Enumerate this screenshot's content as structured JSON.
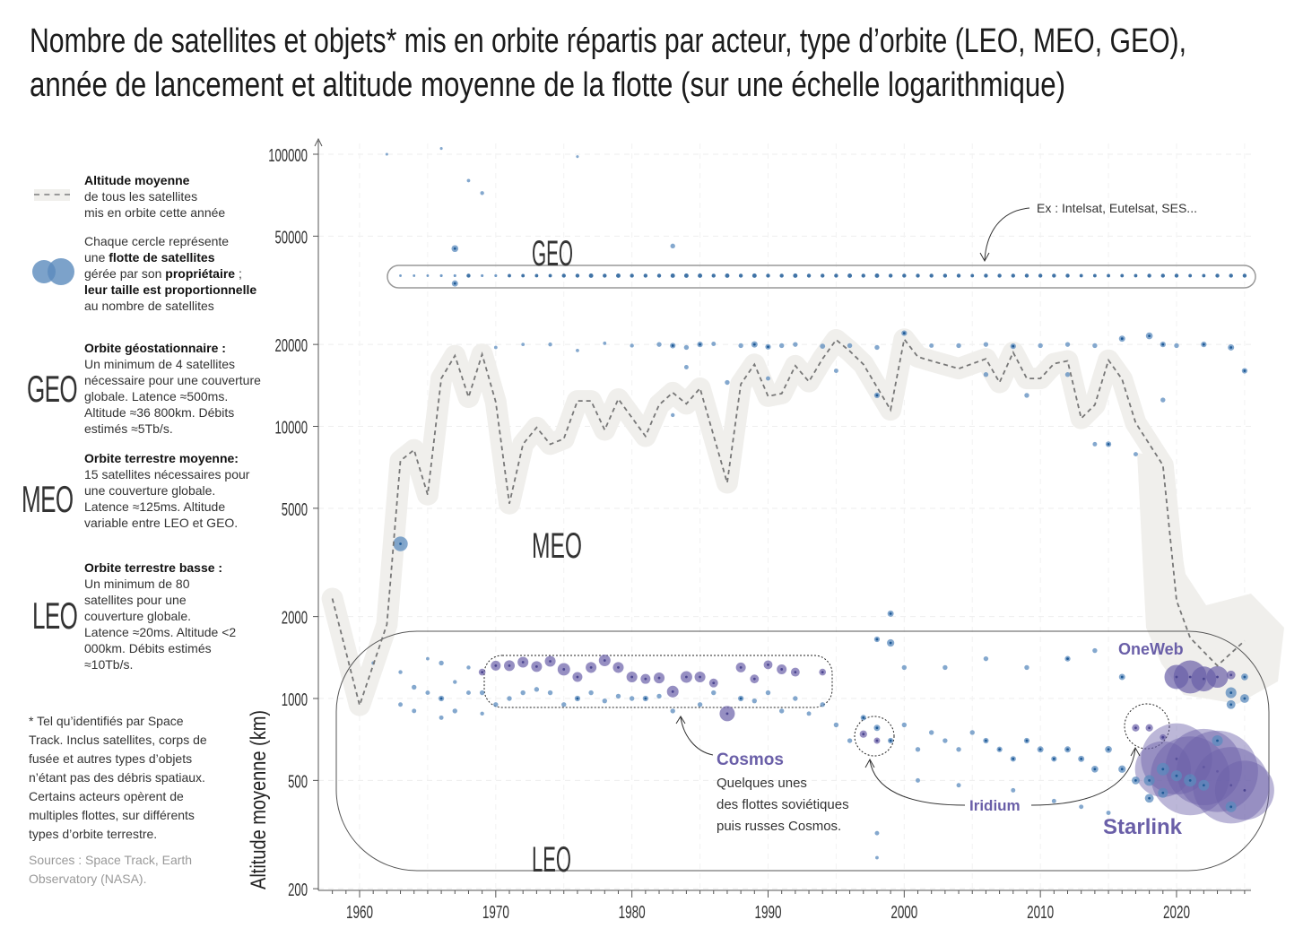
{
  "title": {
    "line1": "Nombre de satellites et objets* mis en orbite répartis par acteur, type d’orbite (LEO, MEO, GEO),",
    "line2": "année de lancement et altitude moyenne de la flotte (sur une échelle logarithmique)"
  },
  "legend": {
    "avg_title": "Altitude moyenne",
    "avg_l1": "de tous les satellites",
    "avg_l2": "mis en orbite cette année",
    "circle_l1": "Chaque cercle représente",
    "circle_l2a": "une ",
    "circle_l2b": "flotte de satellites",
    "circle_l3a": "gérée par son ",
    "circle_l3b": "propriétaire",
    "circle_l3c": " ;",
    "circle_l4": "leur taille est proportionnelle",
    "circle_l5": "au nombre de satellites"
  },
  "orbits": [
    {
      "code": "GEO",
      "title": "Orbite géostationnaire :",
      "text": "Un minimum de 4 satellites nécessaire pour une couverture globale. Latence ≈500ms. Altitude ≈36 800km. Débits estimés ≈5Tb/s."
    },
    {
      "code": "MEO",
      "title": "Orbite terrestre moyenne:",
      "text": "15 satellites nécessaires pour une couverture globale. Latence ≈125ms. Altitude variable entre LEO et GEO."
    },
    {
      "code": "LEO",
      "title": "Orbite terrestre basse :",
      "text": "Un minimum de 80 satellites pour une couverture globale. Latence ≈20ms. Altitude <2 000km. Débits estimés ≈10Tb/s."
    }
  ],
  "footnote": "* Tel qu’identifiés par Space Track. Inclus satellites, corps de fusée et autres types d’objets n’étant pas des débris spatiaux. Certains acteurs opèrent de multiples flottes, sur différents types d’orbite terrestre.",
  "sources": "Sources : Space Track, Earth Observatory (NASA).",
  "colors": {
    "fleet": "#5b8bbd",
    "fleet_dark": "#1f5a96",
    "highlight": "#6a5fa8",
    "avg_line": "#777777",
    "avg_band": "#f0efec"
  },
  "chart_data": {
    "type": "scatter",
    "ylabel": "Altitude moyenne (km)",
    "yscale": "log",
    "ylim": [
      200,
      100000
    ],
    "xlim": [
      1957,
      2025
    ],
    "yticks": [
      "200",
      "500",
      "1000",
      "2000",
      "5000",
      "10000",
      "20000",
      "50000",
      "100000"
    ],
    "xticks": [
      "1960",
      "1970",
      "1980",
      "1990",
      "2000",
      "2010",
      "2020"
    ],
    "grid": true,
    "zone_labels": {
      "geo": "GEO",
      "meo": "MEO",
      "leo": "LEO"
    },
    "annotations": {
      "geo_example": "Ex : Intelsat, Eutelsat, SES...",
      "cosmos": "Cosmos",
      "cosmos_l1": "Quelques unes",
      "cosmos_l2": "des flottes soviétiques",
      "cosmos_l3": "puis russes Cosmos.",
      "iridium": "Iridium",
      "oneweb": "OneWeb",
      "starlink": "Starlink"
    },
    "average_altitude": {
      "years": [
        1958,
        1960,
        1962,
        1963,
        1964,
        1965,
        1966,
        1967,
        1968,
        1969,
        1970,
        1971,
        1972,
        1973,
        1974,
        1975,
        1976,
        1977,
        1978,
        1979,
        1981,
        1982,
        1983,
        1984,
        1985,
        1987,
        1988,
        1989,
        1990,
        1991,
        1992,
        1993,
        1994,
        1995,
        1996,
        1997,
        1999,
        2000,
        2001,
        2002,
        2004,
        2006,
        2007,
        2008,
        2009,
        2010,
        2011,
        2012,
        2013,
        2014,
        2015,
        2016,
        2017,
        2019,
        2020,
        2021,
        2023,
        2025
      ],
      "values": [
        2330,
        944,
        1870,
        7470,
        8200,
        5610,
        15000,
        18200,
        12800,
        18400,
        12300,
        5200,
        8600,
        9900,
        8600,
        9000,
        12400,
        12400,
        9700,
        12600,
        9200,
        12000,
        13300,
        12100,
        13800,
        6200,
        14300,
        16900,
        12900,
        13200,
        16700,
        14600,
        17700,
        20800,
        18900,
        16900,
        11500,
        20900,
        18000,
        17400,
        16300,
        17700,
        14500,
        18700,
        15000,
        15000,
        17000,
        17400,
        10700,
        12000,
        17500,
        14900,
        10300,
        7200,
        2290,
        1670,
        1320,
        1630
      ]
    },
    "geo_row": {
      "altitude": 35786,
      "years_from": 1963,
      "sats": [
        1,
        1,
        1,
        2,
        2,
        4,
        2,
        2,
        3,
        3,
        3,
        3,
        4,
        4,
        5,
        4,
        5,
        4,
        4,
        4,
        5,
        5,
        5,
        4,
        5,
        4,
        5,
        4,
        4,
        5,
        4,
        4,
        4,
        5,
        4,
        5,
        4,
        4,
        4,
        4,
        4,
        4,
        3,
        4,
        4,
        4,
        4,
        4,
        4,
        4,
        3,
        3,
        3,
        3,
        3,
        4,
        4,
        4,
        3,
        3,
        4,
        4,
        4
      ]
    },
    "fleets": [
      [
        1963,
        3700,
        55,
        "b"
      ],
      [
        1967,
        45000,
        12,
        "b"
      ],
      [
        1967,
        33500,
        10,
        "b"
      ],
      [
        1983,
        46000,
        6,
        "b"
      ],
      [
        1968,
        80000,
        3,
        "b"
      ],
      [
        1969,
        72000,
        4,
        "b"
      ],
      [
        1962,
        100000,
        2,
        "b"
      ],
      [
        1966,
        105000,
        2,
        "b"
      ],
      [
        1976,
        98000,
        2,
        "b"
      ],
      [
        1999,
        2050,
        10,
        "b"
      ],
      [
        1999,
        1600,
        14,
        "b"
      ],
      [
        1998,
        1650,
        8,
        "b"
      ],
      [
        1970,
        19500,
        3,
        "b"
      ],
      [
        1972,
        20000,
        3,
        "b"
      ],
      [
        1974,
        20000,
        4,
        "b"
      ],
      [
        1976,
        19000,
        3,
        "b"
      ],
      [
        1978,
        20200,
        3,
        "b"
      ],
      [
        1980,
        19800,
        4,
        "b"
      ],
      [
        1982,
        20000,
        6,
        "b"
      ],
      [
        1983,
        19800,
        8,
        "b"
      ],
      [
        1984,
        19500,
        6,
        "b"
      ],
      [
        1985,
        20000,
        8,
        "b"
      ],
      [
        1986,
        20100,
        5,
        "b"
      ],
      [
        1988,
        19800,
        6,
        "b"
      ],
      [
        1989,
        20000,
        10,
        "b"
      ],
      [
        1990,
        19600,
        8,
        "b"
      ],
      [
        1991,
        19800,
        6,
        "b"
      ],
      [
        1992,
        20000,
        6,
        "b"
      ],
      [
        1994,
        19700,
        7,
        "b"
      ],
      [
        1996,
        19800,
        6,
        "b"
      ],
      [
        1998,
        19500,
        6,
        "b"
      ],
      [
        2000,
        22000,
        8,
        "b"
      ],
      [
        2002,
        19800,
        5,
        "b"
      ],
      [
        2004,
        19800,
        6,
        "b"
      ],
      [
        2006,
        20000,
        6,
        "b"
      ],
      [
        2008,
        19700,
        8,
        "b"
      ],
      [
        2010,
        19800,
        6,
        "b"
      ],
      [
        2012,
        20000,
        6,
        "b"
      ],
      [
        2014,
        19800,
        6,
        "b"
      ],
      [
        2016,
        21000,
        10,
        "b"
      ],
      [
        2018,
        21500,
        12,
        "b"
      ],
      [
        2019,
        20000,
        8,
        "b"
      ],
      [
        2020,
        19800,
        6,
        "b"
      ],
      [
        2022,
        20000,
        8,
        "b"
      ],
      [
        2024,
        19500,
        10,
        "b"
      ],
      [
        2025,
        16000,
        8,
        "b"
      ],
      [
        1984,
        16500,
        5,
        "b"
      ],
      [
        1987,
        14500,
        6,
        "b"
      ],
      [
        1983,
        11000,
        4,
        "b"
      ],
      [
        1990,
        15000,
        5,
        "b"
      ],
      [
        1995,
        16000,
        5,
        "b"
      ],
      [
        1998,
        13000,
        8,
        "b"
      ],
      [
        2006,
        15500,
        6,
        "b"
      ],
      [
        2009,
        13000,
        6,
        "b"
      ],
      [
        2012,
        15500,
        6,
        "b"
      ],
      [
        2014,
        8600,
        5,
        "b"
      ],
      [
        2015,
        8600,
        8,
        "b"
      ],
      [
        2017,
        7900,
        5,
        "b"
      ],
      [
        2019,
        12500,
        6,
        "b"
      ],
      [
        1961,
        1350,
        3,
        "b"
      ],
      [
        1963,
        1250,
        4,
        "b"
      ],
      [
        1963,
        950,
        5,
        "b"
      ],
      [
        1964,
        1100,
        6,
        "b"
      ],
      [
        1964,
        900,
        5,
        "b"
      ],
      [
        1965,
        1400,
        3,
        "b"
      ],
      [
        1965,
        1050,
        5,
        "b"
      ],
      [
        1966,
        1350,
        6,
        "b"
      ],
      [
        1966,
        1000,
        8,
        "b"
      ],
      [
        1966,
        850,
        5,
        "b"
      ],
      [
        1967,
        1150,
        4,
        "b"
      ],
      [
        1967,
        900,
        6,
        "b"
      ],
      [
        1968,
        1300,
        4,
        "b"
      ],
      [
        1968,
        1050,
        5,
        "b"
      ],
      [
        1969,
        1050,
        6,
        "b"
      ],
      [
        1969,
        880,
        4,
        "b"
      ],
      [
        1970,
        950,
        6,
        "b"
      ],
      [
        1971,
        1000,
        6,
        "b"
      ],
      [
        1972,
        1050,
        6,
        "b"
      ],
      [
        1973,
        1080,
        6,
        "b"
      ],
      [
        1974,
        1050,
        6,
        "b"
      ],
      [
        1975,
        950,
        6,
        "b"
      ],
      [
        1976,
        1000,
        8,
        "b"
      ],
      [
        1977,
        1050,
        6,
        "b"
      ],
      [
        1978,
        980,
        6,
        "b"
      ],
      [
        1979,
        1020,
        6,
        "b"
      ],
      [
        1980,
        1000,
        6,
        "b"
      ],
      [
        1981,
        1000,
        8,
        "b"
      ],
      [
        1982,
        1020,
        6,
        "b"
      ],
      [
        1983,
        900,
        6,
        "b"
      ],
      [
        1985,
        950,
        6,
        "b"
      ],
      [
        1986,
        1050,
        6,
        "b"
      ],
      [
        1988,
        1000,
        8,
        "b"
      ],
      [
        1989,
        980,
        6,
        "b"
      ],
      [
        1990,
        1050,
        6,
        "b"
      ],
      [
        1991,
        900,
        6,
        "b"
      ],
      [
        1992,
        1000,
        6,
        "b"
      ],
      [
        1993,
        880,
        5,
        "b"
      ],
      [
        1994,
        950,
        6,
        "b"
      ],
      [
        1995,
        800,
        6,
        "b"
      ],
      [
        1996,
        700,
        6,
        "b"
      ],
      [
        1997,
        850,
        8,
        "b"
      ],
      [
        1998,
        780,
        10,
        "b"
      ],
      [
        1999,
        700,
        8,
        "b"
      ],
      [
        2000,
        800,
        6,
        "b"
      ],
      [
        2001,
        650,
        6,
        "b"
      ],
      [
        2002,
        750,
        6,
        "b"
      ],
      [
        2003,
        700,
        6,
        "b"
      ],
      [
        2004,
        650,
        6,
        "b"
      ],
      [
        2005,
        750,
        6,
        "b"
      ],
      [
        2006,
        700,
        8,
        "b"
      ],
      [
        2007,
        650,
        8,
        "b"
      ],
      [
        2008,
        600,
        8,
        "b"
      ],
      [
        2009,
        700,
        8,
        "b"
      ],
      [
        2010,
        650,
        10,
        "b"
      ],
      [
        2011,
        600,
        8,
        "b"
      ],
      [
        2012,
        650,
        10,
        "b"
      ],
      [
        2013,
        600,
        10,
        "b"
      ],
      [
        2014,
        550,
        12,
        "b"
      ],
      [
        2015,
        650,
        12,
        "b"
      ],
      [
        2016,
        550,
        14,
        "b"
      ],
      [
        2016,
        1200,
        10,
        "b"
      ],
      [
        2017,
        500,
        16,
        "b"
      ],
      [
        2018,
        500,
        30,
        "b"
      ],
      [
        2018,
        430,
        20,
        "b"
      ],
      [
        2019,
        550,
        40,
        "b"
      ],
      [
        2019,
        450,
        25,
        "b"
      ],
      [
        2020,
        520,
        30,
        "b"
      ],
      [
        2021,
        500,
        40,
        "b"
      ],
      [
        2022,
        480,
        30,
        "b"
      ],
      [
        2023,
        700,
        30,
        "b"
      ],
      [
        2024,
        1050,
        30,
        "b"
      ],
      [
        2024,
        950,
        20,
        "b"
      ],
      [
        2025,
        1000,
        20,
        "b"
      ],
      [
        2025,
        1200,
        12,
        "b"
      ],
      [
        2024,
        400,
        30,
        "b"
      ],
      [
        2000,
        1300,
        6,
        "b"
      ],
      [
        2003,
        1300,
        6,
        "b"
      ],
      [
        2006,
        1400,
        6,
        "b"
      ],
      [
        2009,
        1300,
        6,
        "b"
      ],
      [
        2012,
        1400,
        8,
        "b"
      ],
      [
        2014,
        1500,
        6,
        "b"
      ],
      [
        2001,
        500,
        5,
        "b"
      ],
      [
        2004,
        480,
        5,
        "b"
      ],
      [
        2008,
        460,
        5,
        "b"
      ],
      [
        2011,
        420,
        5,
        "b"
      ],
      [
        2013,
        400,
        5,
        "b"
      ],
      [
        2015,
        380,
        5,
        "b"
      ],
      [
        1998,
        320,
        5,
        "b"
      ],
      [
        1998,
        260,
        3,
        "b"
      ],
      [
        1969,
        1250,
        12,
        "p"
      ],
      [
        1970,
        1320,
        25,
        "p"
      ],
      [
        1971,
        1320,
        30,
        "p"
      ],
      [
        1972,
        1360,
        30,
        "p"
      ],
      [
        1973,
        1310,
        30,
        "p"
      ],
      [
        1974,
        1370,
        30,
        "p"
      ],
      [
        1975,
        1280,
        40,
        "p"
      ],
      [
        1976,
        1200,
        25,
        "p"
      ],
      [
        1977,
        1300,
        30,
        "p"
      ],
      [
        1978,
        1380,
        35,
        "p"
      ],
      [
        1979,
        1300,
        30,
        "p"
      ],
      [
        1980,
        1200,
        30,
        "p"
      ],
      [
        1981,
        1180,
        25,
        "p"
      ],
      [
        1982,
        1190,
        30,
        "p"
      ],
      [
        1983,
        1060,
        35,
        "p"
      ],
      [
        1984,
        1200,
        35,
        "p"
      ],
      [
        1985,
        1200,
        30,
        "p"
      ],
      [
        1986,
        1140,
        20,
        "p"
      ],
      [
        1987,
        880,
        60,
        "p"
      ],
      [
        1988,
        1300,
        25,
        "p"
      ],
      [
        1989,
        1180,
        20,
        "p"
      ],
      [
        1990,
        1330,
        20,
        "p"
      ],
      [
        1991,
        1280,
        25,
        "p"
      ],
      [
        1992,
        1250,
        20,
        "p"
      ],
      [
        1994,
        1250,
        12,
        "p"
      ],
      [
        1997,
        740,
        14,
        "p"
      ],
      [
        1998,
        700,
        10,
        "p"
      ],
      [
        2017,
        780,
        14,
        "p"
      ],
      [
        2018,
        780,
        14,
        "p"
      ],
      [
        2019,
        720,
        10,
        "p"
      ],
      [
        2020,
        1200,
        150,
        "p"
      ],
      [
        2021,
        1200,
        280,
        "p"
      ],
      [
        2022,
        1180,
        160,
        "p"
      ],
      [
        2023,
        1200,
        120,
        "p"
      ],
      [
        2024,
        1220,
        20,
        "p"
      ],
      [
        2019,
        550,
        800,
        "p"
      ],
      [
        2020,
        600,
        1300,
        "p"
      ],
      [
        2021,
        520,
        1600,
        "p"
      ],
      [
        2022,
        560,
        1500,
        "p"
      ],
      [
        2023,
        540,
        1700,
        "p"
      ],
      [
        2024,
        480,
        1500,
        "p"
      ],
      [
        2025,
        460,
        900,
        "p"
      ]
    ]
  }
}
